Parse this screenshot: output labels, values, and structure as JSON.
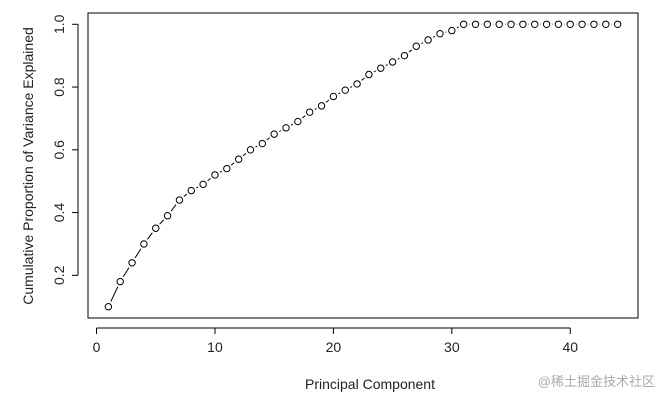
{
  "chart_data": {
    "type": "scatter",
    "x_label": "Principal Component",
    "y_label": "Cumulative Proportion of Variance Explained",
    "x": [
      1,
      2,
      3,
      4,
      5,
      6,
      7,
      8,
      9,
      10,
      11,
      12,
      13,
      14,
      15,
      16,
      17,
      18,
      19,
      20,
      21,
      22,
      23,
      24,
      25,
      26,
      27,
      28,
      29,
      30,
      31,
      32,
      33,
      34,
      35,
      36,
      37,
      38,
      39,
      40,
      41,
      42,
      43,
      44
    ],
    "values": [
      0.1,
      0.18,
      0.24,
      0.3,
      0.35,
      0.39,
      0.44,
      0.47,
      0.49,
      0.52,
      0.54,
      0.57,
      0.6,
      0.62,
      0.65,
      0.67,
      0.69,
      0.72,
      0.74,
      0.77,
      0.79,
      0.81,
      0.84,
      0.86,
      0.88,
      0.9,
      0.93,
      0.95,
      0.97,
      0.98,
      1.0,
      1.0,
      1.0,
      1.0,
      1.0,
      1.0,
      1.0,
      1.0,
      1.0,
      1.0,
      1.0,
      1.0,
      1.0,
      1.0
    ],
    "color": "#000000",
    "connect": true,
    "xlim": [
      -0.72,
      45.72
    ],
    "xticks": [
      0,
      10,
      20,
      30,
      40
    ],
    "ylim": [
      0.064,
      1.036
    ],
    "yticks": [
      0.2,
      0.4,
      0.6,
      0.8,
      {
        "value": 1.0,
        "label": "1.0"
      }
    ],
    "watermark": "@稀土掘金技术社区"
  }
}
